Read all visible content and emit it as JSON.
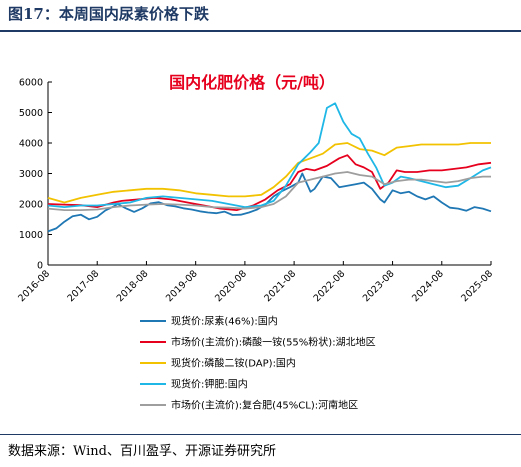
{
  "figure": {
    "title": "图17：本周国内尿素价格下跌",
    "source": "数据来源：Wind、百川盈孚、开源证券研究所"
  },
  "chart_data": {
    "type": "line",
    "title": "国内化肥价格（元/吨）",
    "title_color": "#e6001e",
    "xlabel": "",
    "ylabel": "",
    "ylim": [
      0,
      6000
    ],
    "yticks": [
      0,
      1000,
      2000,
      3000,
      4000,
      5000,
      6000
    ],
    "xticks": [
      "2016-08",
      "2017-08",
      "2018-08",
      "2019-08",
      "2020-08",
      "2021-08",
      "2022-08",
      "2023-08",
      "2024-08",
      "2025-08"
    ],
    "x_range": [
      "2016-08",
      "2025-08"
    ],
    "grid": false,
    "legend_position": "bottom",
    "series": [
      {
        "name": "现货价:尿素(46%):国内",
        "color": "#1f77b4",
        "points": [
          [
            "2016-08",
            1100
          ],
          [
            "2016-10",
            1200
          ],
          [
            "2016-12",
            1420
          ],
          [
            "2017-02",
            1600
          ],
          [
            "2017-04",
            1650
          ],
          [
            "2017-06",
            1500
          ],
          [
            "2017-08",
            1580
          ],
          [
            "2017-10",
            1790
          ],
          [
            "2017-12",
            1920
          ],
          [
            "2018-01",
            2000
          ],
          [
            "2018-03",
            1860
          ],
          [
            "2018-05",
            1740
          ],
          [
            "2018-07",
            1860
          ],
          [
            "2018-09",
            2020
          ],
          [
            "2018-11",
            2060
          ],
          [
            "2019-01",
            1960
          ],
          [
            "2019-03",
            1920
          ],
          [
            "2019-05",
            1860
          ],
          [
            "2019-07",
            1820
          ],
          [
            "2019-09",
            1760
          ],
          [
            "2019-11",
            1720
          ],
          [
            "2020-01",
            1700
          ],
          [
            "2020-03",
            1750
          ],
          [
            "2020-05",
            1640
          ],
          [
            "2020-07",
            1650
          ],
          [
            "2020-09",
            1720
          ],
          [
            "2020-11",
            1820
          ],
          [
            "2021-01",
            1980
          ],
          [
            "2021-03",
            2250
          ],
          [
            "2021-05",
            2420
          ],
          [
            "2021-07",
            2550
          ],
          [
            "2021-09",
            2700
          ],
          [
            "2021-10",
            3000
          ],
          [
            "2021-11",
            2700
          ],
          [
            "2021-12",
            2400
          ],
          [
            "2022-01",
            2500
          ],
          [
            "2022-03",
            2900
          ],
          [
            "2022-05",
            2850
          ],
          [
            "2022-07",
            2550
          ],
          [
            "2022-09",
            2600
          ],
          [
            "2022-11",
            2650
          ],
          [
            "2023-01",
            2700
          ],
          [
            "2023-03",
            2500
          ],
          [
            "2023-05",
            2150
          ],
          [
            "2023-06",
            2050
          ],
          [
            "2023-08",
            2450
          ],
          [
            "2023-10",
            2350
          ],
          [
            "2023-12",
            2400
          ],
          [
            "2024-02",
            2250
          ],
          [
            "2024-04",
            2150
          ],
          [
            "2024-06",
            2250
          ],
          [
            "2024-08",
            2050
          ],
          [
            "2024-10",
            1880
          ],
          [
            "2024-12",
            1850
          ],
          [
            "2025-02",
            1780
          ],
          [
            "2025-04",
            1900
          ],
          [
            "2025-06",
            1850
          ],
          [
            "2025-08",
            1760
          ]
        ]
      },
      {
        "name": "市场价(主流价):磷酸一铵(55%粉状):湖北地区",
        "color": "#e6001e",
        "points": [
          [
            "2016-08",
            2000
          ],
          [
            "2016-12",
            1980
          ],
          [
            "2017-04",
            1960
          ],
          [
            "2017-08",
            1900
          ],
          [
            "2017-12",
            2050
          ],
          [
            "2018-02",
            2100
          ],
          [
            "2018-06",
            2150
          ],
          [
            "2018-10",
            2200
          ],
          [
            "2019-02",
            2150
          ],
          [
            "2019-06",
            2050
          ],
          [
            "2019-10",
            1950
          ],
          [
            "2020-02",
            1850
          ],
          [
            "2020-06",
            1800
          ],
          [
            "2020-10",
            1950
          ],
          [
            "2021-01",
            2150
          ],
          [
            "2021-04",
            2450
          ],
          [
            "2021-07",
            2650
          ],
          [
            "2021-09",
            3050
          ],
          [
            "2021-11",
            3150
          ],
          [
            "2022-01",
            3100
          ],
          [
            "2022-04",
            3250
          ],
          [
            "2022-07",
            3500
          ],
          [
            "2022-09",
            3600
          ],
          [
            "2022-11",
            3300
          ],
          [
            "2023-01",
            3200
          ],
          [
            "2023-03",
            3050
          ],
          [
            "2023-05",
            2500
          ],
          [
            "2023-07",
            2700
          ],
          [
            "2023-09",
            3100
          ],
          [
            "2023-11",
            3050
          ],
          [
            "2024-02",
            3050
          ],
          [
            "2024-05",
            3100
          ],
          [
            "2024-08",
            3100
          ],
          [
            "2024-11",
            3150
          ],
          [
            "2025-02",
            3200
          ],
          [
            "2025-05",
            3300
          ],
          [
            "2025-08",
            3350
          ]
        ]
      },
      {
        "name": "现货价:磷酸二铵(DAP):国内",
        "color": "#f2c200",
        "points": [
          [
            "2016-08",
            2200
          ],
          [
            "2016-12",
            2050
          ],
          [
            "2017-04",
            2200
          ],
          [
            "2017-08",
            2300
          ],
          [
            "2017-12",
            2400
          ],
          [
            "2018-04",
            2450
          ],
          [
            "2018-08",
            2500
          ],
          [
            "2018-12",
            2500
          ],
          [
            "2019-04",
            2450
          ],
          [
            "2019-08",
            2350
          ],
          [
            "2019-12",
            2300
          ],
          [
            "2020-04",
            2250
          ],
          [
            "2020-08",
            2250
          ],
          [
            "2020-12",
            2300
          ],
          [
            "2021-03",
            2550
          ],
          [
            "2021-06",
            2900
          ],
          [
            "2021-09",
            3350
          ],
          [
            "2021-12",
            3500
          ],
          [
            "2022-03",
            3650
          ],
          [
            "2022-06",
            3950
          ],
          [
            "2022-09",
            4000
          ],
          [
            "2022-12",
            3800
          ],
          [
            "2023-03",
            3750
          ],
          [
            "2023-06",
            3600
          ],
          [
            "2023-09",
            3850
          ],
          [
            "2023-12",
            3900
          ],
          [
            "2024-03",
            3950
          ],
          [
            "2024-06",
            3950
          ],
          [
            "2024-09",
            3950
          ],
          [
            "2024-12",
            3950
          ],
          [
            "2025-03",
            4000
          ],
          [
            "2025-06",
            4000
          ],
          [
            "2025-08",
            4000
          ]
        ]
      },
      {
        "name": "现货价:钾肥:国内",
        "color": "#1fb7e6",
        "points": [
          [
            "2016-08",
            1950
          ],
          [
            "2016-12",
            1900
          ],
          [
            "2017-04",
            1950
          ],
          [
            "2017-08",
            1950
          ],
          [
            "2017-12",
            2000
          ],
          [
            "2018-04",
            2050
          ],
          [
            "2018-08",
            2200
          ],
          [
            "2018-12",
            2250
          ],
          [
            "2019-04",
            2200
          ],
          [
            "2019-08",
            2150
          ],
          [
            "2019-12",
            2100
          ],
          [
            "2020-04",
            2000
          ],
          [
            "2020-08",
            1900
          ],
          [
            "2020-12",
            1950
          ],
          [
            "2021-03",
            2100
          ],
          [
            "2021-06",
            2600
          ],
          [
            "2021-09",
            3300
          ],
          [
            "2021-12",
            3700
          ],
          [
            "2022-02",
            4000
          ],
          [
            "2022-04",
            5150
          ],
          [
            "2022-06",
            5300
          ],
          [
            "2022-08",
            4700
          ],
          [
            "2022-10",
            4300
          ],
          [
            "2022-12",
            4150
          ],
          [
            "2023-02",
            3650
          ],
          [
            "2023-04",
            3200
          ],
          [
            "2023-06",
            2600
          ],
          [
            "2023-08",
            2700
          ],
          [
            "2023-10",
            2900
          ],
          [
            "2023-12",
            2850
          ],
          [
            "2024-03",
            2750
          ],
          [
            "2024-06",
            2650
          ],
          [
            "2024-09",
            2550
          ],
          [
            "2024-12",
            2600
          ],
          [
            "2025-03",
            2850
          ],
          [
            "2025-06",
            3100
          ],
          [
            "2025-08",
            3200
          ]
        ]
      },
      {
        "name": "市场价(主流价):复合肥(45%CL):河南地区",
        "color": "#9e9e9e",
        "points": [
          [
            "2016-08",
            1850
          ],
          [
            "2016-12",
            1800
          ],
          [
            "2017-04",
            1800
          ],
          [
            "2017-08",
            1820
          ],
          [
            "2017-12",
            1900
          ],
          [
            "2018-04",
            1950
          ],
          [
            "2018-08",
            1980
          ],
          [
            "2018-12",
            2000
          ],
          [
            "2019-04",
            1980
          ],
          [
            "2019-08",
            1950
          ],
          [
            "2019-12",
            1900
          ],
          [
            "2020-04",
            1880
          ],
          [
            "2020-08",
            1850
          ],
          [
            "2020-12",
            1900
          ],
          [
            "2021-03",
            2000
          ],
          [
            "2021-06",
            2250
          ],
          [
            "2021-09",
            2700
          ],
          [
            "2021-12",
            2800
          ],
          [
            "2022-03",
            2900
          ],
          [
            "2022-06",
            3000
          ],
          [
            "2022-09",
            3050
          ],
          [
            "2022-12",
            2950
          ],
          [
            "2023-03",
            2900
          ],
          [
            "2023-06",
            2650
          ],
          [
            "2023-09",
            2750
          ],
          [
            "2023-12",
            2800
          ],
          [
            "2024-03",
            2800
          ],
          [
            "2024-06",
            2750
          ],
          [
            "2024-09",
            2700
          ],
          [
            "2024-12",
            2750
          ],
          [
            "2025-03",
            2850
          ],
          [
            "2025-06",
            2900
          ],
          [
            "2025-08",
            2900
          ]
        ]
      }
    ]
  }
}
